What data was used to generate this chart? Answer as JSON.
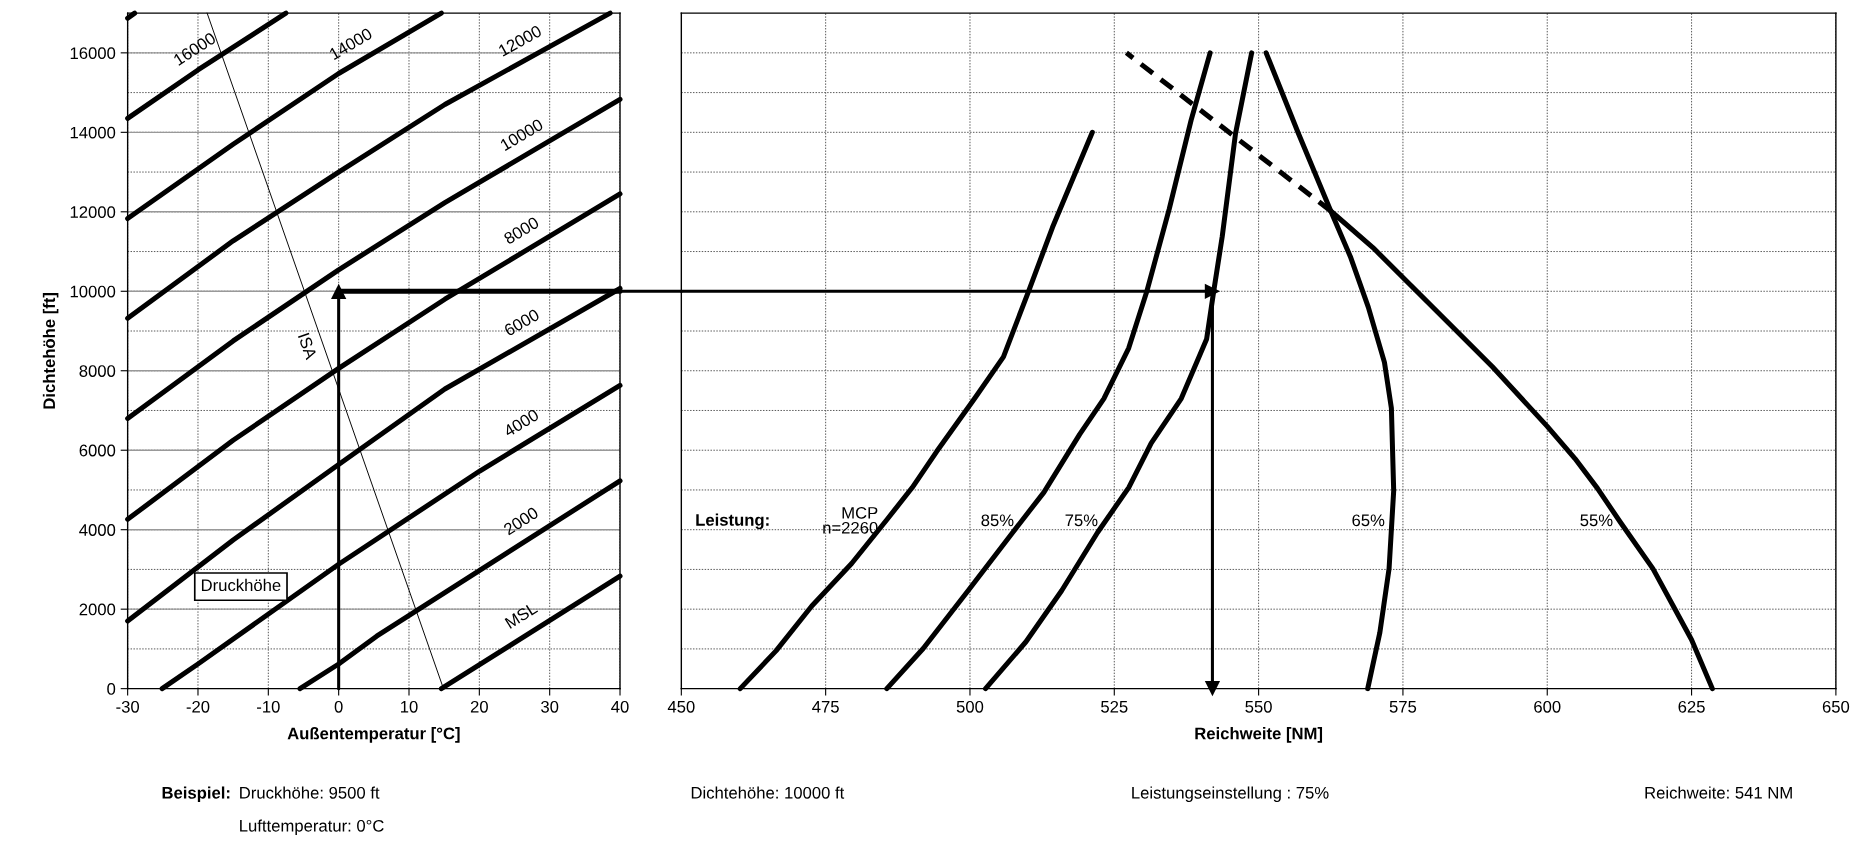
{
  "chart_data": [
    {
      "type": "line",
      "xlabel": "Außentemperatur [°C]",
      "ylabel": "Dichtehöhe [ft]",
      "xlim": [
        -30,
        40
      ],
      "xticks": [
        -30,
        -20,
        -10,
        0,
        10,
        20,
        30,
        40
      ],
      "ylim": [
        0,
        17000
      ],
      "yticks": [
        0,
        {
          "value": 1000,
          "label": null
        },
        2000,
        {
          "value": 3000,
          "label": null
        },
        4000,
        {
          "value": 5000,
          "label": null
        },
        6000,
        {
          "value": 7000,
          "label": null
        },
        8000,
        {
          "value": 9000,
          "label": null
        },
        10000,
        {
          "value": 11000,
          "label": null
        },
        12000,
        {
          "value": 13000,
          "label": null
        },
        14000,
        {
          "value": 15000,
          "label": null
        },
        16000
      ],
      "grid": true,
      "line_style": "solid",
      "marker": "none",
      "series": [
        {
          "name": "MSL",
          "color": "#000000",
          "x": [
            14.6,
            40
          ],
          "values": [
            0,
            2830
          ]
        },
        {
          "name": "2000",
          "color": "#000000",
          "x": [
            -5.5,
            0,
            5.4,
            40
          ],
          "values": [
            0,
            620,
            1320,
            5230
          ]
        },
        {
          "name": "4000",
          "color": "#000000",
          "x": [
            -25.1,
            -20,
            0,
            20,
            40
          ],
          "values": [
            0,
            620,
            3130,
            5470,
            7630
          ]
        },
        {
          "name": "6000",
          "color": "#000000",
          "x": [
            -30,
            -15,
            0,
            15.1,
            40
          ],
          "values": [
            1700,
            3740,
            5640,
            7540,
            10070
          ]
        },
        {
          "name": "8000",
          "color": "#000000",
          "x": [
            -30,
            -15,
            0,
            15.1,
            40
          ],
          "values": [
            4260,
            6250,
            8060,
            9800,
            12450
          ]
        },
        {
          "name": "10000",
          "color": "#000000",
          "x": [
            -30,
            -15,
            0,
            15.1,
            40
          ],
          "values": [
            6800,
            8750,
            10540,
            12230,
            14830
          ]
        },
        {
          "name": "12000",
          "color": "#000000",
          "x": [
            -30,
            -15,
            0,
            15.1,
            38.6
          ],
          "values": [
            9320,
            11270,
            13000,
            14700,
            17000
          ]
        },
        {
          "name": "14000",
          "color": "#000000",
          "x": [
            -30,
            -15,
            0,
            14.6
          ],
          "values": [
            11830,
            13700,
            15480,
            17000
          ]
        },
        {
          "name": "16000",
          "color": "#000000",
          "x": [
            -30,
            -20,
            -7.5
          ],
          "values": [
            14350,
            15570,
            17000
          ]
        },
        {
          "color": "#000000",
          "x": [
            -30,
            -29
          ],
          "values": [
            16870,
            17000
          ]
        },
        {
          "name": "ISA",
          "color": "#000000",
          "x": [
            -18.7,
            14.9
          ],
          "values": [
            17000,
            0
          ]
        },
        {
          "color": "#000000",
          "x": [
            0,
            0
          ],
          "values": [
            0,
            10000
          ],
          "marker": "triangle"
        },
        {
          "color": "#000000",
          "x": [
            0,
            40
          ],
          "values": [
            10000,
            10000
          ]
        }
      ],
      "annotations": [
        "Druckhöhe",
        "Beispiel:",
        "Druckhöhe: 9500 ft",
        "Lufttemperatur: 0°C"
      ]
    },
    {
      "type": "line",
      "xlabel": "Reichweite [NM]",
      "xlim": [
        450,
        650
      ],
      "xticks": [
        450,
        475,
        500,
        525,
        550,
        575,
        600,
        625,
        650
      ],
      "ylim": [
        0,
        17000
      ],
      "yticks": [
        0,
        1000,
        2000,
        3000,
        4000,
        5000,
        6000,
        7000,
        8000,
        9000,
        10000,
        11000,
        12000,
        13000,
        14000,
        15000,
        16000
      ],
      "tick_labels": "x",
      "grid": true,
      "line_style": "solid",
      "marker": "none",
      "series": [
        {
          "name": "MCP\nn=2260",
          "color": "#000000",
          "x": [
            460.2,
            466.4,
            472.6,
            479.5,
            485.7,
            490,
            494.2,
            500.8,
            505.8,
            510.1,
            514.3,
            521.2
          ],
          "values": [
            0,
            950,
            2080,
            3150,
            4270,
            5060,
            5960,
            7300,
            8350,
            9980,
            11610,
            14000
          ]
        },
        {
          "name": "85%",
          "color": "#000000",
          "x": [
            485.6,
            491.9,
            499.7,
            507.4,
            512.8,
            519,
            523.2,
            527.5,
            530.6,
            534.5,
            538.3,
            541.6
          ],
          "values": [
            0,
            1010,
            2470,
            3930,
            4940,
            6400,
            7300,
            8570,
            9980,
            12060,
            14300,
            16000
          ]
        },
        {
          "name": "75%",
          "color": "#000000",
          "x": [
            502.7,
            509.7,
            515.9,
            522.1,
            527.5,
            531.4,
            536.6,
            541,
            542.2,
            543.7,
            546,
            548.8
          ],
          "values": [
            0,
            1180,
            2470,
            3930,
            5060,
            6180,
            7300,
            8800,
            9980,
            11380,
            13970,
            16000
          ]
        },
        {
          "name": "65%",
          "color": "#000000",
          "x": [
            568.9,
            571,
            572.6,
            573.4,
            573,
            571.8,
            569,
            565.9,
            562.5,
            556.9,
            551.3
          ],
          "values": [
            0,
            1410,
            3020,
            4980,
            7060,
            8210,
            9600,
            10870,
            12020,
            13970,
            16000
          ]
        },
        {
          "name": "55%",
          "color": "#000000",
          "x": [
            628.6,
            625,
            622.2,
            618.3,
            612.7,
            608.7,
            604.8,
            600,
            590.5,
            581,
            569.8,
            562.5
          ],
          "values": [
            0,
            1230,
            1980,
            3020,
            4180,
            5040,
            5790,
            6600,
            8100,
            9480,
            11100,
            12020
          ]
        },
        {
          "color": "#000000",
          "x": [
            562.5,
            527.1
          ],
          "values": [
            12020,
            16000
          ],
          "line_style": "dashed"
        },
        {
          "color": "#000000",
          "x": [
            450,
            542
          ],
          "values": [
            10000,
            10000
          ],
          "marker": "triangle"
        },
        {
          "color": "#000000",
          "x": [
            542,
            542
          ],
          "values": [
            10000,
            0
          ],
          "marker": "triangle"
        }
      ],
      "annotations": [
        "Leistung:",
        "Dichtehöhe: 10000 ft",
        "Leistungseinstellung : 75%",
        "Reichweite: 541 NM"
      ]
    }
  ]
}
